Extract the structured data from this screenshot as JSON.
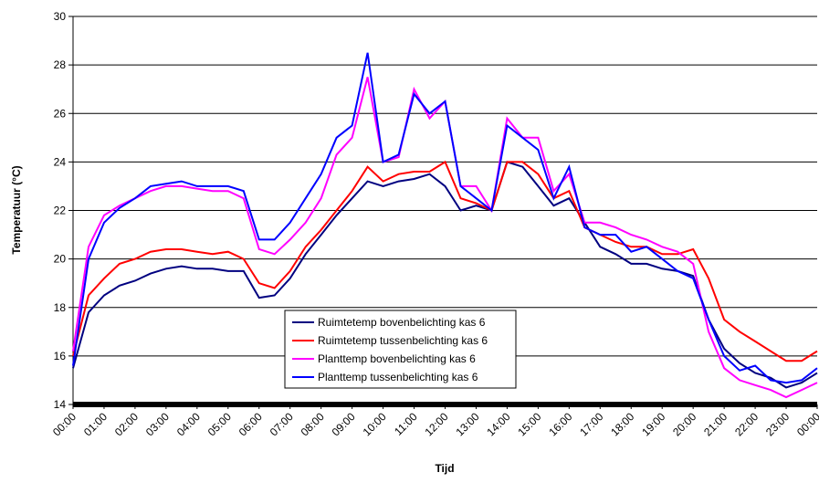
{
  "chart_data": {
    "type": "line",
    "x_label": "Tijd",
    "y_label": "Temperatuur (°C)",
    "x": [
      0,
      0.5,
      1,
      1.5,
      2,
      2.5,
      3,
      3.5,
      4,
      4.5,
      5,
      5.5,
      6,
      6.5,
      7,
      7.5,
      8,
      8.5,
      9,
      9.5,
      10,
      10.5,
      11,
      11.5,
      12,
      12.5,
      13,
      13.5,
      14,
      14.5,
      15,
      15.5,
      16,
      16.5,
      17,
      17.5,
      18,
      18.5,
      19,
      19.5,
      20,
      20.5,
      21,
      21.5,
      22,
      22.5,
      23,
      23.5,
      24
    ],
    "series": [
      {
        "name": "Ruimtetemp bovenbelichting kas 6",
        "color": "#000080",
        "values": [
          15.5,
          17.8,
          18.5,
          18.9,
          19.1,
          19.4,
          19.6,
          19.7,
          19.6,
          19.6,
          19.5,
          19.5,
          18.4,
          18.5,
          19.2,
          20.2,
          21.0,
          21.8,
          22.5,
          23.2,
          23.0,
          23.2,
          23.3,
          23.5,
          23.0,
          22.0,
          22.2,
          22.0,
          24.0,
          23.8,
          23.0,
          22.2,
          22.5,
          21.5,
          20.5,
          20.2,
          19.8,
          19.8,
          19.6,
          19.5,
          19.3,
          17.5,
          16.3,
          15.7,
          15.3,
          15.1,
          14.7,
          14.9,
          15.3
        ]
      },
      {
        "name": "Ruimtetemp tussenbelichting kas 6",
        "color": "#ff0000",
        "values": [
          16.0,
          18.5,
          19.2,
          19.8,
          20.0,
          20.3,
          20.4,
          20.4,
          20.3,
          20.2,
          20.3,
          20.0,
          19.0,
          18.8,
          19.5,
          20.5,
          21.2,
          22.0,
          22.8,
          23.8,
          23.2,
          23.5,
          23.6,
          23.6,
          24.0,
          22.5,
          22.3,
          22.0,
          24.0,
          24.0,
          23.5,
          22.5,
          22.8,
          21.3,
          21.0,
          20.7,
          20.5,
          20.5,
          20.2,
          20.2,
          20.4,
          19.2,
          17.5,
          17.0,
          16.6,
          16.2,
          15.8,
          15.8,
          16.2
        ]
      },
      {
        "name": "Planttemp bovenbelichting kas 6",
        "color": "#ff00ff",
        "values": [
          16.2,
          20.5,
          21.8,
          22.2,
          22.5,
          22.8,
          23.0,
          23.0,
          22.9,
          22.8,
          22.8,
          22.5,
          20.4,
          20.2,
          20.8,
          21.5,
          22.5,
          24.3,
          25.0,
          27.5,
          24.0,
          24.2,
          27.0,
          25.8,
          26.5,
          23.0,
          23.0,
          22.0,
          25.8,
          25.0,
          25.0,
          22.8,
          23.5,
          21.5,
          21.5,
          21.3,
          21.0,
          20.8,
          20.5,
          20.3,
          19.8,
          17.0,
          15.5,
          15.0,
          14.8,
          14.6,
          14.3,
          14.6,
          14.9
        ]
      },
      {
        "name": "Planttemp tussenbelichting kas 6",
        "color": "#0000ff",
        "values": [
          15.6,
          20.0,
          21.5,
          22.1,
          22.5,
          23.0,
          23.1,
          23.2,
          23.0,
          23.0,
          23.0,
          22.8,
          20.8,
          20.8,
          21.5,
          22.5,
          23.5,
          25.0,
          25.5,
          28.5,
          24.0,
          24.3,
          26.8,
          26.0,
          26.5,
          23.0,
          22.5,
          22.0,
          25.5,
          25.0,
          24.5,
          22.5,
          23.8,
          21.3,
          21.0,
          21.0,
          20.3,
          20.5,
          20.0,
          19.5,
          19.2,
          17.5,
          16.0,
          15.4,
          15.6,
          15.0,
          14.9,
          15.0,
          15.5
        ]
      }
    ],
    "xlim": [
      0,
      24
    ],
    "xticks": [
      {
        "value": 0,
        "label": "00:00"
      },
      {
        "value": 1,
        "label": "01:00"
      },
      {
        "value": 2,
        "label": "02:00"
      },
      {
        "value": 3,
        "label": "03:00"
      },
      {
        "value": 4,
        "label": "04:00"
      },
      {
        "value": 5,
        "label": "05:00"
      },
      {
        "value": 6,
        "label": "06:00"
      },
      {
        "value": 7,
        "label": "07:00"
      },
      {
        "value": 8,
        "label": "08:00"
      },
      {
        "value": 9,
        "label": "09:00"
      },
      {
        "value": 10,
        "label": "10:00"
      },
      {
        "value": 11,
        "label": "11:00"
      },
      {
        "value": 12,
        "label": "12:00"
      },
      {
        "value": 13,
        "label": "13:00"
      },
      {
        "value": 14,
        "label": "14:00"
      },
      {
        "value": 15,
        "label": "15:00"
      },
      {
        "value": 16,
        "label": "16:00"
      },
      {
        "value": 17,
        "label": "17:00"
      },
      {
        "value": 18,
        "label": "18:00"
      },
      {
        "value": 19,
        "label": "19:00"
      },
      {
        "value": 20,
        "label": "20:00"
      },
      {
        "value": 21,
        "label": "21:00"
      },
      {
        "value": 22,
        "label": "22:00"
      },
      {
        "value": 23,
        "label": "23:00"
      },
      {
        "value": 24,
        "label": "00:00"
      }
    ],
    "ylim": [
      14,
      30
    ],
    "yticks": [
      14,
      16,
      18,
      20,
      22,
      24,
      26,
      28,
      30
    ],
    "grid": true,
    "legend": "center"
  }
}
